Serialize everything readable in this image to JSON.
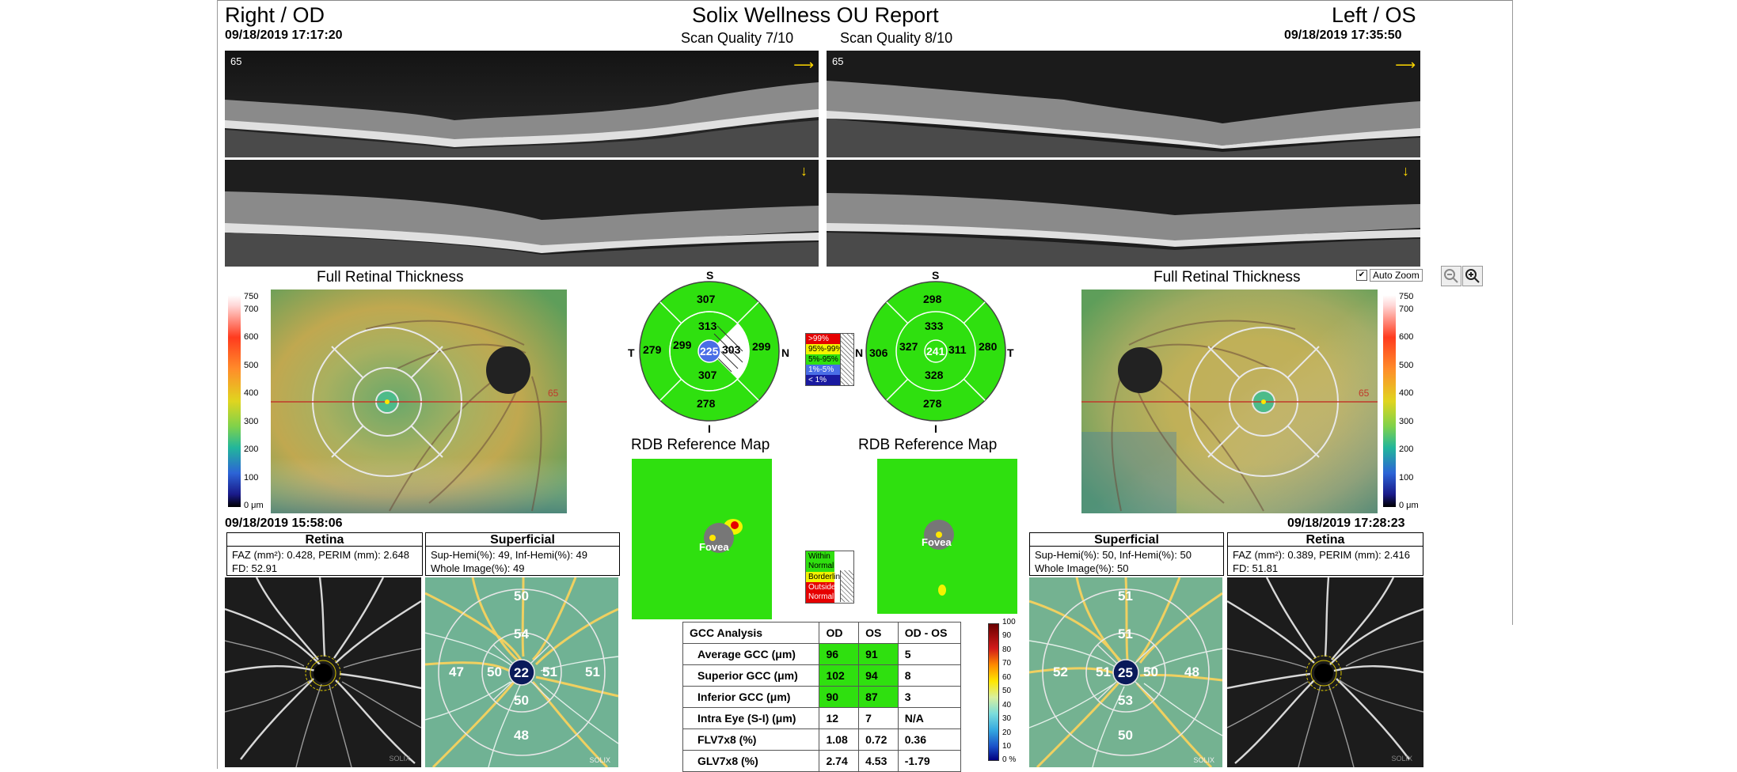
{
  "header": {
    "title": "Solix Wellness OU Report",
    "right_eye": "Right / OD",
    "left_eye": "Left / OS",
    "od_datetime": "09/18/2019 17:17:20",
    "os_datetime": "09/18/2019 17:35:50",
    "od_quality": "Scan Quality 7/10",
    "os_quality": "Scan Quality 8/10"
  },
  "oct": {
    "od_top_label": "65",
    "os_top_label": "65",
    "arrow_h": "⟶",
    "arrow_v": "↓"
  },
  "thickness": {
    "od_title": "Full Retinal Thickness",
    "os_title": "Full Retinal Thickness",
    "line_label_od": "65",
    "line_label_os": "65",
    "scale_labels": [
      "750",
      "700",
      "600",
      "500",
      "400",
      "300",
      "200",
      "100",
      "0 μm"
    ],
    "auto_zoom": "Auto Zoom",
    "auto_zoom_checked": "✔"
  },
  "etdrs_od": {
    "s": "S",
    "i": "I",
    "t": "T",
    "n": "N",
    "outer_s": "307",
    "outer_t": "279",
    "outer_n": "299",
    "outer_i": "278",
    "inner_s": "313",
    "inner_t": "299",
    "inner_n": "303",
    "inner_i": "307",
    "center": "225"
  },
  "etdrs_os": {
    "s": "S",
    "i": "I",
    "t": "T",
    "n": "N",
    "outer_s": "298",
    "outer_t": "280",
    "outer_n": "306",
    "outer_i": "278",
    "inner_s": "333",
    "inner_t": "311",
    "inner_n": "327",
    "inner_i": "328",
    "center": "241"
  },
  "norm_legend": [
    {
      "label": ">99%",
      "color": "#e60000"
    },
    {
      "label": "95%-99%",
      "color": "#f3f300"
    },
    {
      "label": "5%-95%",
      "color": "#2fe00f"
    },
    {
      "label": "1%-5%",
      "color": "#4a6ee6"
    },
    {
      "label": "< 1%",
      "color": "#1a1aa0"
    }
  ],
  "rdb": {
    "od_title": "RDB Reference Map",
    "os_title": "RDB Reference Map",
    "fovea": "Fovea",
    "legend": [
      {
        "label": "Within Normal",
        "color": "#2fe00f"
      },
      {
        "label": "Borderline",
        "color": "#f3f300"
      },
      {
        "label": "Outside Normal",
        "color": "#e60000"
      }
    ]
  },
  "angio": {
    "od_date": "09/18/2019 15:58:06",
    "os_date": "09/18/2019 17:28:23",
    "od_retina_title": "Retina",
    "od_superficial_title": "Superficial",
    "os_superficial_title": "Superficial",
    "os_retina_title": "Retina",
    "od_retina_info1": "FAZ (mm²):  0.428, PERIM (mm):  2.648",
    "od_retina_info2": " FD:  52.91",
    "od_sup_info1": "Sup-Hemi(%): 49, Inf-Hemi(%): 49",
    "od_sup_info2": " Whole Image(%): 49",
    "os_sup_info1": "Sup-Hemi(%): 50, Inf-Hemi(%): 50",
    "os_sup_info2": " Whole Image(%): 50",
    "os_retina_info1": "FAZ (mm²):  0.389, PERIM (mm):  2.416",
    "os_retina_info2": " FD:  51.81",
    "od_sup_values": {
      "outer_top": "50",
      "inner_top": "54",
      "outer_left": "47",
      "inner_left": "50",
      "center": "22",
      "inner_right": "51",
      "outer_right": "51",
      "inner_bottom": "50",
      "outer_bottom": "48"
    },
    "os_sup_values": {
      "outer_top": "51",
      "inner_top": "51",
      "outer_left": "52",
      "inner_left": "51",
      "center": "25",
      "inner_right": "50",
      "outer_right": "48",
      "inner_bottom": "53",
      "outer_bottom": "50"
    },
    "watermark": "SOLIX"
  },
  "gcc": {
    "headers": [
      "GCC Analysis",
      "OD",
      "OS",
      "OD - OS"
    ],
    "rows": [
      {
        "label": "Average GCC (μm)",
        "od": "96",
        "os": "91",
        "diff": "5",
        "hl": true
      },
      {
        "label": "Superior GCC (μm)",
        "od": "102",
        "os": "94",
        "diff": "8",
        "hl": true
      },
      {
        "label": "Inferior GCC (μm)",
        "od": "90",
        "os": "87",
        "diff": "3",
        "hl": true
      },
      {
        "label": "Intra Eye (S-I) (μm)",
        "od": "12",
        "os": "7",
        "diff": "N/A",
        "hl": false
      },
      {
        "label": "FLV7x8 (%)",
        "od": "1.08",
        "os": "0.72",
        "diff": "0.36",
        "hl": false
      },
      {
        "label": "GLV7x8 (%)",
        "od": "2.74",
        "os": "4.53",
        "diff": "-1.79",
        "hl": false
      }
    ]
  },
  "density_scale": [
    "100",
    "90",
    "80",
    "70",
    "60",
    "50",
    "40",
    "30",
    "20",
    "10",
    "0 %"
  ]
}
